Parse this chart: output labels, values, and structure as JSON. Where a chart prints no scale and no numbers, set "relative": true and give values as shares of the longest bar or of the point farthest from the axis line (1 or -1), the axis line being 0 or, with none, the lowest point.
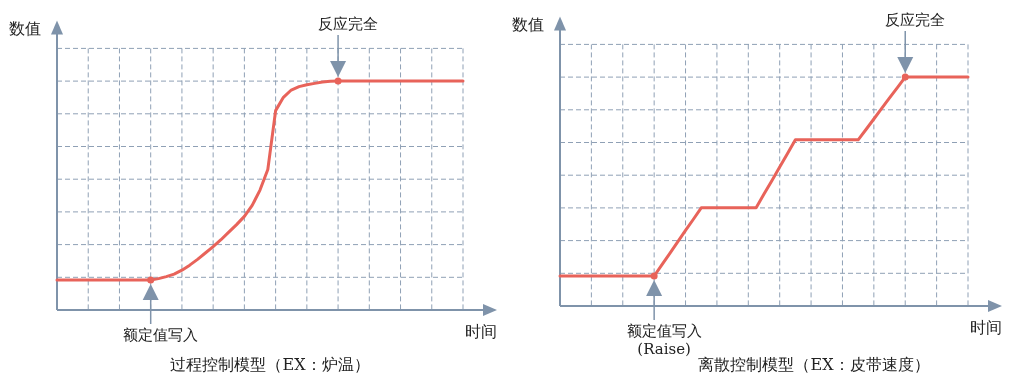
{
  "chart_data": [
    {
      "type": "line",
      "title": "过程控制模型（EX：炉温）",
      "xlabel": "时间",
      "ylabel": "数值",
      "relative": true,
      "grid": true,
      "categories": [
        null,
        null,
        null,
        null,
        null,
        null,
        null,
        null,
        null,
        null,
        null,
        null,
        null,
        null,
        null,
        null,
        null,
        null,
        null,
        null,
        null,
        null,
        null,
        null,
        null,
        null,
        null,
        null,
        null,
        null,
        null,
        null,
        null,
        null,
        null,
        null,
        null,
        null,
        null,
        null,
        null,
        null,
        null,
        null,
        null,
        null,
        null,
        null,
        null,
        null,
        null,
        null,
        null
      ],
      "series": [
        {
          "type": "line",
          "color": "#e8635a",
          "values": [
            0.131,
            0.131,
            0.131,
            0.131,
            0.131,
            0.131,
            0.131,
            0.131,
            0.131,
            0.131,
            0.131,
            0.131,
            0.131,
            0.137,
            0.146,
            0.157,
            0.174,
            0.196,
            0.221,
            0.249,
            0.277,
            0.307,
            0.34,
            0.373,
            0.409,
            0.457,
            0.524,
            0.614,
            0.871,
            0.929,
            0.961,
            0.976,
            0.984,
            0.99,
            0.996,
            0.999,
            1,
            1,
            1,
            1,
            1,
            1,
            1,
            1,
            1,
            1,
            1,
            1,
            1,
            1,
            1,
            1,
            1
          ]
        }
      ],
      "annotations": [
        "额定值写入",
        "反应完全"
      ]
    },
    {
      "type": "line",
      "title": "离散控制模型（EX：皮带速度）",
      "xlabel": "时间",
      "ylabel": "数值",
      "relative": true,
      "grid": true,
      "categories": [
        null,
        null,
        null,
        null,
        null,
        null,
        null,
        null,
        null,
        null,
        null,
        null,
        null,
        null,
        null,
        null,
        null,
        null,
        null,
        null,
        null,
        null,
        null,
        null,
        null,
        null,
        null,
        null,
        null,
        null,
        null,
        null,
        null,
        null,
        null,
        null,
        null,
        null,
        null,
        null,
        null,
        null,
        null,
        null,
        null,
        null,
        null,
        null,
        null,
        null,
        null,
        null,
        null
      ],
      "series": [
        {
          "type": "line",
          "color": "#e8635a",
          "values": [
            0.131,
            0.131,
            0.131,
            0.131,
            0.131,
            0.131,
            0.131,
            0.131,
            0.131,
            0.131,
            0.131,
            0.131,
            0.131,
            0.181,
            0.23,
            0.28,
            0.33,
            0.379,
            0.429,
            0.429,
            0.429,
            0.429,
            0.429,
            0.429,
            0.429,
            0.429,
            0.489,
            0.547,
            0.607,
            0.666,
            0.726,
            0.726,
            0.726,
            0.726,
            0.726,
            0.726,
            0.726,
            0.726,
            0.726,
            0.771,
            0.817,
            0.863,
            0.909,
            0.954,
            1,
            1,
            1,
            1,
            1,
            1,
            1,
            1,
            1
          ]
        }
      ],
      "annotations": [
        "额定值写入\n(Raise)",
        "反应完全"
      ]
    }
  ]
}
